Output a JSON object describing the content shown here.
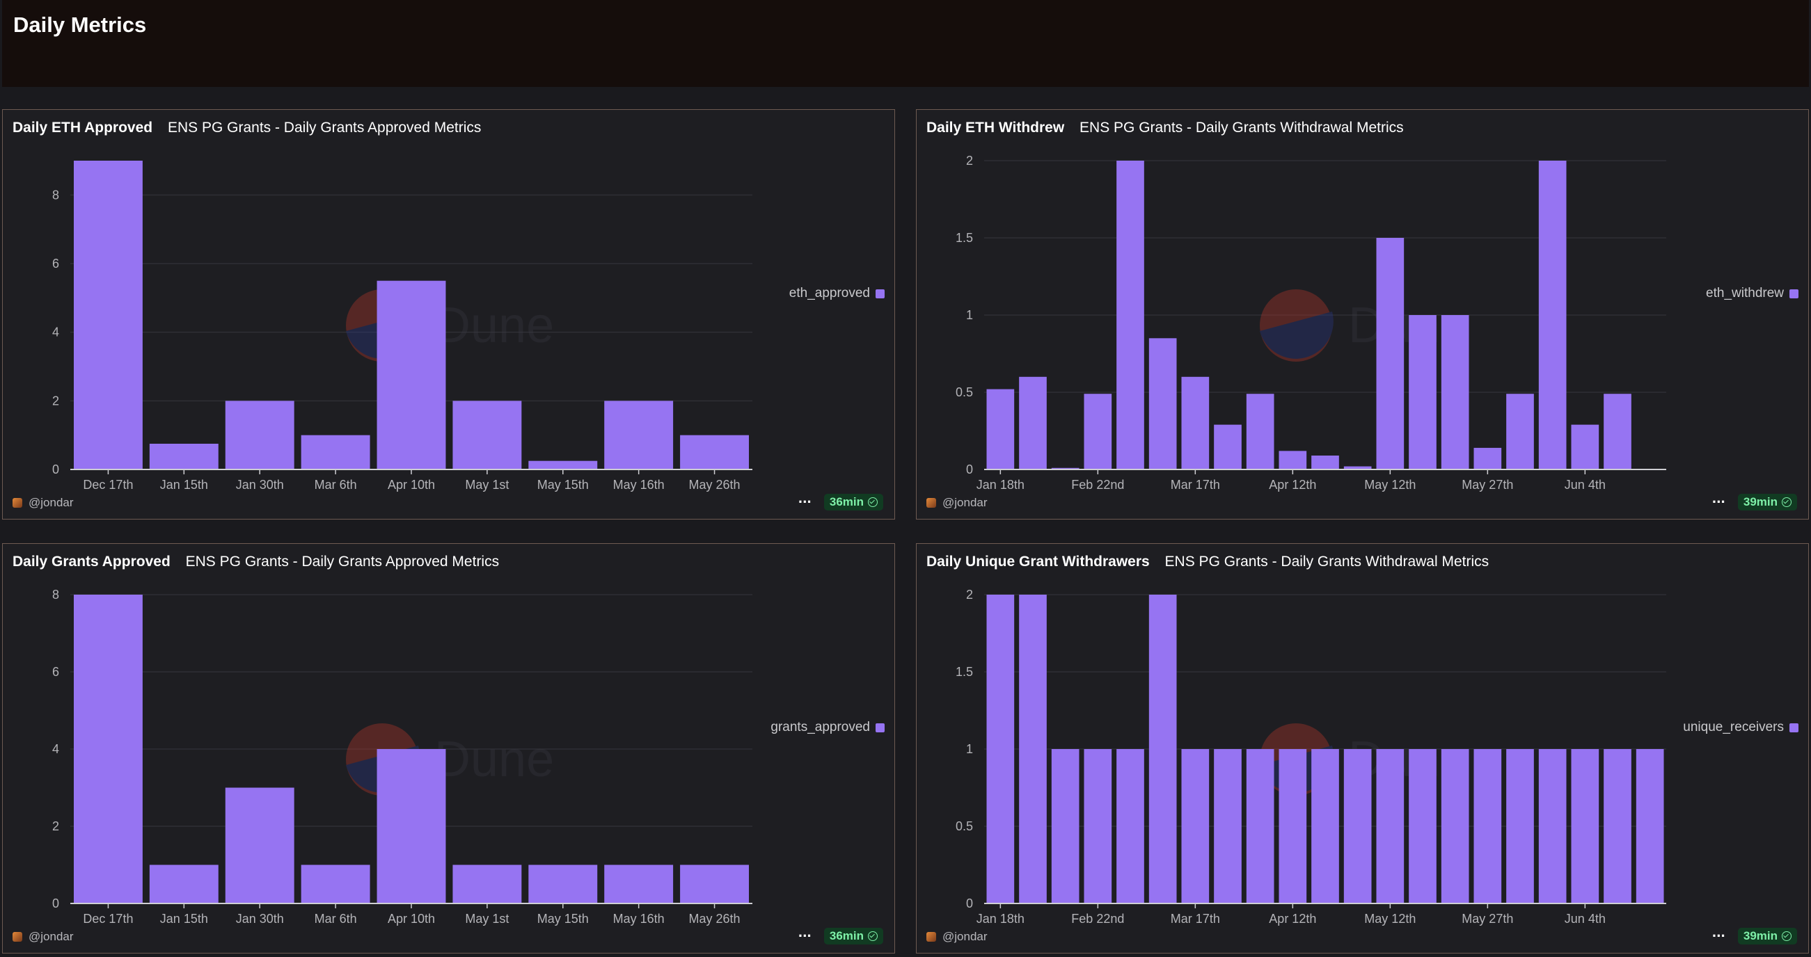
{
  "page": {
    "title": "Daily Metrics",
    "watermark": "Dune",
    "bar_color": "#9674f2"
  },
  "panels": [
    {
      "title": "Daily ETH Approved",
      "subtitle": "ENS PG Grants - Daily Grants Approved Metrics",
      "legend": "eth_approved",
      "author": "@jondar",
      "refresh": "36min"
    },
    {
      "title": "Daily ETH Withdrew",
      "subtitle": "ENS PG Grants - Daily Grants Withdrawal Metrics",
      "legend": "eth_withdrew",
      "author": "@jondar",
      "refresh": "39min"
    },
    {
      "title": "Daily Grants Approved",
      "subtitle": "ENS PG Grants - Daily Grants Approved Metrics",
      "legend": "grants_approved",
      "author": "@jondar",
      "refresh": "36min"
    },
    {
      "title": "Daily Unique Grant Withdrawers",
      "subtitle": "ENS PG Grants - Daily Grants Withdrawal Metrics",
      "legend": "unique_receivers",
      "author": "@jondar",
      "refresh": "39min"
    }
  ],
  "chart_data": [
    {
      "type": "bar",
      "title": "Daily ETH Approved",
      "categories": [
        "Dec 17th",
        "Jan 15th",
        "Jan 30th",
        "Mar 6th",
        "Apr 10th",
        "May 1st",
        "May 15th",
        "May 16th",
        "May 26th"
      ],
      "series": [
        {
          "name": "eth_approved",
          "values": [
            9,
            0.75,
            2,
            1,
            5.5,
            2,
            0.25,
            2,
            1
          ]
        }
      ],
      "ylim": [
        0,
        9
      ],
      "yticks": [
        0,
        2,
        4,
        6,
        8
      ],
      "ytick_labels": [
        "0",
        "2",
        "4",
        "6",
        "8"
      ],
      "xtick_labels": [
        "Dec 17th",
        "Jan 15th",
        "Jan 30th",
        "Mar 6th",
        "Apr 10th",
        "May 1st",
        "May 15th",
        "May 16th",
        "May 26th"
      ],
      "grid": true,
      "legend_position": "right"
    },
    {
      "type": "bar",
      "title": "Daily ETH Withdrew",
      "categories": [
        "Jan 18th",
        "",
        "",
        "Feb 22nd",
        "",
        "",
        "Mar 17th",
        "",
        "",
        "Apr 12th",
        "",
        "",
        "May 12th",
        "",
        "",
        "May 27th",
        "",
        "",
        "Jun 4th",
        "",
        ""
      ],
      "series": [
        {
          "name": "eth_withdrew",
          "values": [
            0.52,
            0.6,
            0.01,
            0.49,
            2,
            0.85,
            0.6,
            0.29,
            0.49,
            0.12,
            0.09,
            0.02,
            1.5,
            1,
            1,
            0.14,
            0.49,
            2,
            0.29,
            0.49,
            0
          ]
        }
      ],
      "ylim": [
        0,
        2
      ],
      "yticks": [
        0,
        0.5,
        1,
        1.5,
        2
      ],
      "ytick_labels": [
        "0",
        "0.5",
        "1",
        "1.5",
        "2"
      ],
      "xtick_labels": [
        "Jan 18th",
        "Feb 22nd",
        "Mar 17th",
        "Apr 12th",
        "May 12th",
        "May 27th",
        "Jun 4th"
      ],
      "grid": true,
      "legend_position": "right"
    },
    {
      "type": "bar",
      "title": "Daily Grants Approved",
      "categories": [
        "Dec 17th",
        "Jan 15th",
        "Jan 30th",
        "Mar 6th",
        "Apr 10th",
        "May 1st",
        "May 15th",
        "May 16th",
        "May 26th"
      ],
      "series": [
        {
          "name": "grants_approved",
          "values": [
            8,
            1,
            3,
            1,
            4,
            1,
            1,
            1,
            1
          ]
        }
      ],
      "ylim": [
        0,
        8
      ],
      "yticks": [
        0,
        2,
        4,
        6,
        8
      ],
      "ytick_labels": [
        "0",
        "2",
        "4",
        "6",
        "8"
      ],
      "xtick_labels": [
        "Dec 17th",
        "Jan 15th",
        "Jan 30th",
        "Mar 6th",
        "Apr 10th",
        "May 1st",
        "May 15th",
        "May 16th",
        "May 26th"
      ],
      "grid": true,
      "legend_position": "right"
    },
    {
      "type": "bar",
      "title": "Daily Unique Grant Withdrawers",
      "categories": [
        "Jan 18th",
        "",
        "",
        "Feb 22nd",
        "",
        "",
        "Mar 17th",
        "",
        "",
        "Apr 12th",
        "",
        "",
        "May 12th",
        "",
        "",
        "May 27th",
        "",
        "",
        "Jun 4th",
        "",
        ""
      ],
      "series": [
        {
          "name": "unique_receivers",
          "values": [
            2,
            2,
            1,
            1,
            1,
            2,
            1,
            1,
            1,
            1,
            1,
            1,
            1,
            1,
            1,
            1,
            1,
            1,
            1,
            1,
            1
          ]
        }
      ],
      "ylim": [
        0,
        2
      ],
      "yticks": [
        0,
        0.5,
        1,
        1.5,
        2
      ],
      "ytick_labels": [
        "0",
        "0.5",
        "1",
        "1.5",
        "2"
      ],
      "xtick_labels": [
        "Jan 18th",
        "Feb 22nd",
        "Mar 17th",
        "Apr 12th",
        "May 12th",
        "May 27th",
        "Jun 4th"
      ],
      "grid": true,
      "legend_position": "right"
    }
  ]
}
